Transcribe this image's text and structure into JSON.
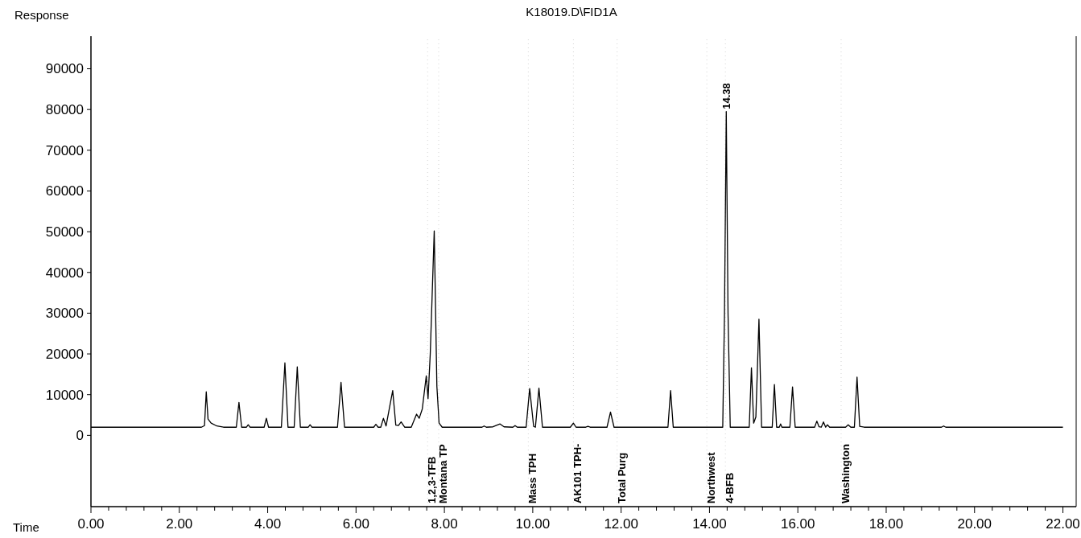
{
  "chart_data": {
    "type": "line",
    "title": "K18019.D\\FID1A",
    "xlabel": "Time",
    "ylabel": "Response",
    "xlim": [
      0,
      22.3
    ],
    "ylim": [
      -17500,
      98000
    ],
    "xticks": [
      {
        "value": 0,
        "label": "0.00"
      },
      {
        "value": 0.4,
        "label": null
      },
      {
        "value": 0.8,
        "label": null
      },
      {
        "value": 1.2,
        "label": null
      },
      {
        "value": 1.6,
        "label": null
      },
      {
        "value": 2,
        "label": "2.00"
      },
      {
        "value": 2.4,
        "label": null
      },
      {
        "value": 2.8,
        "label": null
      },
      {
        "value": 3.2,
        "label": null
      },
      {
        "value": 3.6,
        "label": null
      },
      {
        "value": 4,
        "label": "4.00"
      },
      {
        "value": 4.4,
        "label": null
      },
      {
        "value": 4.8,
        "label": null
      },
      {
        "value": 5.2,
        "label": null
      },
      {
        "value": 5.6,
        "label": null
      },
      {
        "value": 6,
        "label": "6.00"
      },
      {
        "value": 6.4,
        "label": null
      },
      {
        "value": 6.8,
        "label": null
      },
      {
        "value": 7.2,
        "label": null
      },
      {
        "value": 7.6,
        "label": null
      },
      {
        "value": 8,
        "label": "8.00"
      },
      {
        "value": 8.4,
        "label": null
      },
      {
        "value": 8.8,
        "label": null
      },
      {
        "value": 9.2,
        "label": null
      },
      {
        "value": 9.6,
        "label": null
      },
      {
        "value": 10,
        "label": "10.00"
      },
      {
        "value": 10.4,
        "label": null
      },
      {
        "value": 10.8,
        "label": null
      },
      {
        "value": 11.2,
        "label": null
      },
      {
        "value": 11.6,
        "label": null
      },
      {
        "value": 12,
        "label": "12.00"
      },
      {
        "value": 12.4,
        "label": null
      },
      {
        "value": 12.8,
        "label": null
      },
      {
        "value": 13.2,
        "label": null
      },
      {
        "value": 13.6,
        "label": null
      },
      {
        "value": 14,
        "label": "14.00"
      },
      {
        "value": 14.4,
        "label": null
      },
      {
        "value": 14.8,
        "label": null
      },
      {
        "value": 15.2,
        "label": null
      },
      {
        "value": 15.6,
        "label": null
      },
      {
        "value": 16,
        "label": "16.00"
      },
      {
        "value": 16.4,
        "label": null
      },
      {
        "value": 16.8,
        "label": null
      },
      {
        "value": 17.2,
        "label": null
      },
      {
        "value": 17.6,
        "label": null
      },
      {
        "value": 18,
        "label": "18.00"
      },
      {
        "value": 18.4,
        "label": null
      },
      {
        "value": 18.8,
        "label": null
      },
      {
        "value": 19.2,
        "label": null
      },
      {
        "value": 19.6,
        "label": null
      },
      {
        "value": 20,
        "label": "20.00"
      },
      {
        "value": 20.4,
        "label": null
      },
      {
        "value": 20.8,
        "label": null
      },
      {
        "value": 21.2,
        "label": null
      },
      {
        "value": 21.6,
        "label": null
      },
      {
        "value": 22,
        "label": "22.00"
      }
    ],
    "yticks": [
      0,
      10000,
      20000,
      30000,
      40000,
      50000,
      60000,
      70000,
      80000,
      90000
    ],
    "grid": false,
    "marker": "none",
    "line_style": "solid",
    "annotations": [
      {
        "text": "14.38",
        "x": 14.38,
        "y": 79500
      }
    ],
    "ref_lines": [
      {
        "axis": "x",
        "value": 7.62,
        "label": "1,2,3-TFB"
      },
      {
        "axis": "x",
        "value": 7.87,
        "label": "Montana TP"
      },
      {
        "axis": "x",
        "value": 9.9,
        "label": "Mass TPH"
      },
      {
        "axis": "x",
        "value": 10.92,
        "label": "AK101 TPH-"
      },
      {
        "axis": "x",
        "value": 11.91,
        "label": "Total Purg"
      },
      {
        "axis": "x",
        "value": 13.94,
        "label": "Northwest"
      },
      {
        "axis": "x",
        "value": 14.36,
        "label": "4-BFB"
      },
      {
        "axis": "x",
        "value": 16.98,
        "label": "Washington"
      }
    ],
    "series": [
      {
        "color": "#000000",
        "x": [
          0,
          2.5,
          2.57,
          2.61,
          2.65,
          2.72,
          2.85,
          3.0,
          3.29,
          3.35,
          3.41,
          3.52,
          3.56,
          3.6,
          3.92,
          3.97,
          4.02,
          4.31,
          4.39,
          4.46,
          4.6,
          4.67,
          4.74,
          4.92,
          4.96,
          5.0,
          5.58,
          5.66,
          5.74,
          6.4,
          6.45,
          6.5,
          6.56,
          6.62,
          6.68,
          6.83,
          6.9,
          6.96,
          7.02,
          7.1,
          7.25,
          7.37,
          7.43,
          7.5,
          7.59,
          7.63,
          7.68,
          7.77,
          7.83,
          7.88,
          7.95,
          8.85,
          8.9,
          8.95,
          9.1,
          9.26,
          9.35,
          9.55,
          9.6,
          9.65,
          9.85,
          9.93,
          10.02,
          10.06,
          10.14,
          10.22,
          10.85,
          10.92,
          10.98,
          11.2,
          11.25,
          11.3,
          11.68,
          11.76,
          11.84,
          13.06,
          13.12,
          13.18,
          14.3,
          14.34,
          14.38,
          14.42,
          14.47,
          14.9,
          14.95,
          15.0,
          15.05,
          15.12,
          15.18,
          15.42,
          15.47,
          15.52,
          15.58,
          15.61,
          15.64,
          15.82,
          15.88,
          15.94,
          16.38,
          16.43,
          16.48,
          16.53,
          16.58,
          16.63,
          16.67,
          16.72,
          17.08,
          17.14,
          17.2,
          17.28,
          17.34,
          17.4,
          17.5,
          19.25,
          19.3,
          19.35,
          22.0
        ],
        "values": [
          2000,
          2000,
          2400,
          10700,
          4000,
          3000,
          2300,
          2000,
          2000,
          8100,
          2000,
          2000,
          2600,
          2000,
          2000,
          4200,
          2000,
          2000,
          17800,
          2000,
          2000,
          16800,
          2000,
          2000,
          2600,
          2000,
          2000,
          13000,
          2000,
          2000,
          2700,
          2000,
          2000,
          4200,
          2300,
          11000,
          2500,
          2400,
          3300,
          2000,
          2000,
          5200,
          4200,
          6500,
          14600,
          9000,
          20000,
          50200,
          12000,
          3000,
          2000,
          2000,
          2300,
          2000,
          2100,
          2800,
          2100,
          2000,
          2400,
          2000,
          2000,
          11500,
          2200,
          2000,
          11600,
          2000,
          2000,
          3000,
          2000,
          2000,
          2200,
          2000,
          2000,
          5700,
          2000,
          2000,
          11000,
          2000,
          2000,
          30000,
          79500,
          30000,
          2000,
          2000,
          16600,
          3000,
          4500,
          28500,
          2000,
          2000,
          12500,
          2000,
          2000,
          2800,
          2000,
          2000,
          11900,
          2000,
          2000,
          3500,
          2100,
          2000,
          3300,
          2000,
          2600,
          2000,
          2000,
          2600,
          2000,
          2000,
          14300,
          2200,
          2000,
          2000,
          2300,
          2000,
          2000
        ]
      }
    ]
  }
}
